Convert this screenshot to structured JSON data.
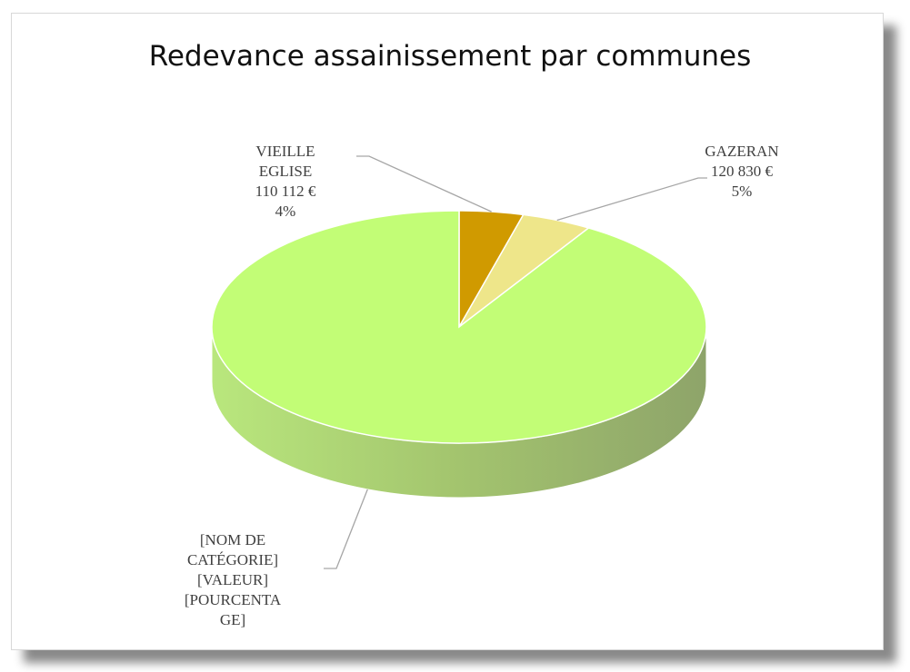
{
  "chart_data": {
    "type": "pie",
    "title": "Redevance assainissement par communes",
    "categories": [
      "VIEILLE EGLISE",
      "GAZERAN",
      "[NOM DE CATÉGORIE]"
    ],
    "values": [
      110112,
      120830,
      2400000
    ],
    "value_labels": [
      "110 112 €",
      "120 830 €",
      "[VALEUR]"
    ],
    "percent_labels": [
      "4%",
      "5%",
      "[POURCENTAGE]"
    ],
    "colors": [
      "#d09a00",
      "#eee68a",
      "#c2fd76"
    ]
  }
}
